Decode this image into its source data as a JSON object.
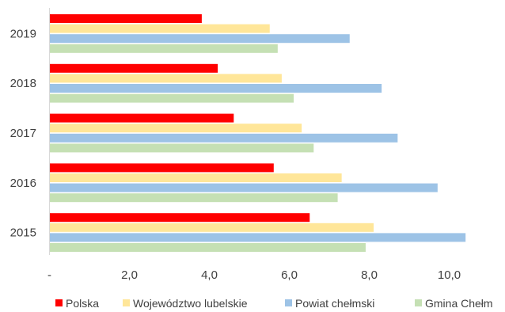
{
  "chart_data": {
    "type": "bar",
    "orientation": "horizontal",
    "categories": [
      "2019",
      "2018",
      "2017",
      "2016",
      "2015"
    ],
    "series": [
      {
        "name": "Polska",
        "color": "#ff0000",
        "values": [
          3.8,
          4.2,
          4.6,
          5.6,
          6.5
        ]
      },
      {
        "name": "Województwo lubelskie",
        "color": "#ffe699",
        "values": [
          5.5,
          5.8,
          6.3,
          7.3,
          8.1
        ]
      },
      {
        "name": "Powiat chełmski",
        "color": "#9dc3e6",
        "values": [
          7.5,
          8.3,
          8.7,
          9.7,
          10.4
        ]
      },
      {
        "name": "Gmina Chełm",
        "color": "#c5e0b4",
        "values": [
          5.7,
          6.1,
          6.6,
          7.2,
          7.9
        ]
      }
    ],
    "x_ticks": [
      "-",
      "2,0",
      "4,0",
      "6,0",
      "8,0",
      "10,0"
    ],
    "xlim": [
      0,
      11
    ],
    "grid": false,
    "legend_position": "bottom"
  }
}
